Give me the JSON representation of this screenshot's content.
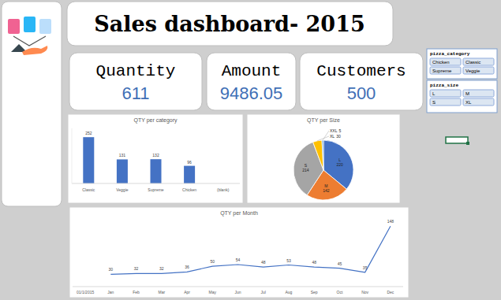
{
  "header": {
    "title": "Sales dashboard- 2015"
  },
  "kpis": [
    {
      "label": "Quantity",
      "value": 611
    },
    {
      "label": "Amount",
      "value": 9486.05
    },
    {
      "label": "Customers",
      "value": 500
    }
  ],
  "slicers": [
    {
      "title": "pizza_category",
      "items": [
        "Chicken",
        "Classic",
        "Supreme",
        "Veggie"
      ]
    },
    {
      "title": "pizza_size",
      "items": [
        "L",
        "M",
        "S",
        "XL"
      ]
    }
  ],
  "chart_data": [
    {
      "type": "bar",
      "title": "QTY per category",
      "categories": [
        "Classic",
        "Veggie",
        "Supreme",
        "Chicken",
        "(blank)"
      ],
      "values": [
        252,
        131,
        132,
        96,
        null
      ],
      "color": "#4472c4",
      "ylim": [
        0,
        300
      ],
      "tick_labels": "x",
      "data_labels": true
    },
    {
      "type": "pie",
      "title": "QTY per Size",
      "categories": [
        "L",
        "M",
        "S",
        "XL",
        "XXL"
      ],
      "values": [
        220,
        142,
        214,
        30,
        5
      ],
      "colors": [
        "#4472c4",
        "#ed7d31",
        "#a5a5a5",
        "#ffc000",
        "#5b9bd5"
      ],
      "data_labels": true
    },
    {
      "type": "line",
      "title": "QTY per Month",
      "categories": [
        "01/1/2015",
        "Jan",
        "Feb",
        "Mar",
        "Apr",
        "May",
        "Jun",
        "Jul",
        "Aug",
        "Sep",
        "Oct",
        "Nov",
        "Dec"
      ],
      "values": [
        null,
        30,
        32,
        32,
        36,
        50,
        54,
        48,
        53,
        48,
        45,
        35,
        148
      ],
      "color": "#4472c4",
      "ylim": [
        0,
        160
      ],
      "tick_labels": "x",
      "data_labels": true
    }
  ]
}
